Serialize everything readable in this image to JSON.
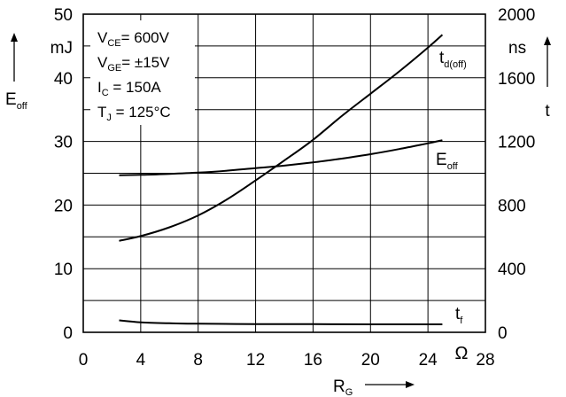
{
  "chart_data": {
    "type": "line",
    "x_axis": {
      "symbol": "R",
      "symbol_sub": "G",
      "unit": "Ω",
      "range": [
        0,
        28
      ],
      "ticks": [
        0,
        4,
        8,
        12,
        16,
        20,
        24,
        28
      ]
    },
    "y_left": {
      "symbol": "E",
      "symbol_sub": "off",
      "unit": "mJ",
      "range": [
        0,
        50
      ],
      "ticks": [
        0,
        10,
        20,
        30,
        40,
        50
      ]
    },
    "y_right": {
      "symbol": "t",
      "unit": "ns",
      "range": [
        0,
        2000
      ],
      "ticks": [
        0,
        400,
        800,
        1200,
        1600,
        2000
      ]
    },
    "grid": true,
    "conditions": [
      {
        "main": "V",
        "sub": "CE",
        "rest": "= 600V"
      },
      {
        "main": "V",
        "sub": "GE",
        "rest": "= ±15V"
      },
      {
        "main": "I",
        "sub": "C",
        "rest": "  = 150A"
      },
      {
        "main": "T",
        "sub": "J",
        "rest": "  = 125°C"
      }
    ],
    "series": [
      {
        "key": "Eoff",
        "label_main": "E",
        "label_sub": "off",
        "axis": "left",
        "x": [
          2.5,
          4,
          6,
          8,
          10,
          12,
          14,
          16,
          18,
          20,
          22,
          24,
          25
        ],
        "y": [
          24.7,
          24.75,
          24.9,
          25.1,
          25.4,
          25.8,
          26.2,
          26.7,
          27.3,
          28.0,
          28.8,
          29.7,
          30.2
        ]
      },
      {
        "key": "td_off",
        "label_main": "t",
        "label_sub": "d(off)",
        "axis": "right",
        "x": [
          2.5,
          4,
          6,
          8,
          10,
          12,
          14,
          16,
          18,
          20,
          22,
          24,
          25
        ],
        "y": [
          575,
          605,
          660,
          735,
          835,
          955,
          1080,
          1210,
          1360,
          1500,
          1640,
          1790,
          1870
        ]
      },
      {
        "key": "tf",
        "label_main": "t",
        "label_sub": "f",
        "axis": "right",
        "x": [
          2.5,
          4,
          6,
          8,
          12,
          16,
          20,
          25
        ],
        "y": [
          75,
          63,
          57,
          54,
          52,
          51,
          50,
          50
        ]
      }
    ]
  }
}
